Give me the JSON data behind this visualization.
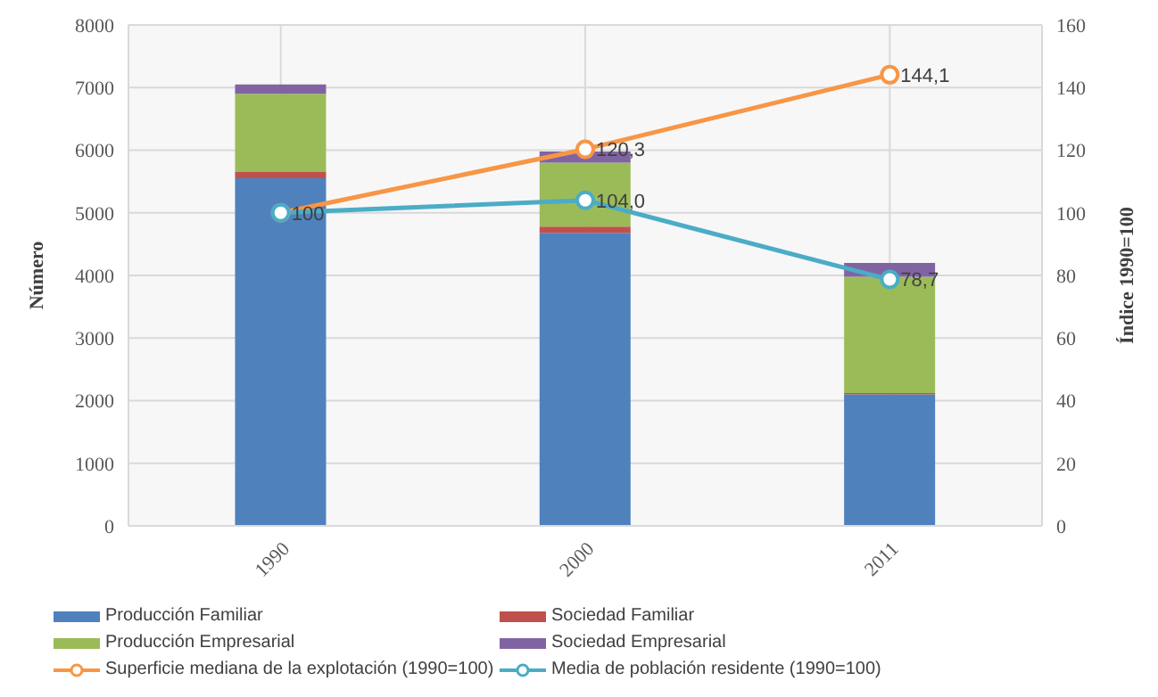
{
  "chart_data": {
    "type": "bar",
    "stacked": true,
    "categories": [
      "1990",
      "2000",
      "2011"
    ],
    "ylabel": "Número",
    "y2label": "Índice  1990=100",
    "ylim": [
      0,
      8000
    ],
    "yticks": [
      0,
      1000,
      2000,
      3000,
      4000,
      5000,
      6000,
      7000,
      8000
    ],
    "y2lim": [
      0,
      160
    ],
    "y2ticks": [
      0,
      20,
      40,
      60,
      80,
      100,
      120,
      140,
      160
    ],
    "grid": true,
    "legend": "bottom",
    "marker": "circle",
    "series": [
      {
        "name": "Producción Familiar",
        "color": "#4f81bd",
        "values": [
          5550,
          4680,
          2100
        ]
      },
      {
        "name": "Sociedad Familiar",
        "color": "#c0504d",
        "values": [
          100,
          100,
          20
        ]
      },
      {
        "name": "Producción Empresarial",
        "color": "#9bbb59",
        "values": [
          1250,
          1020,
          1860
        ]
      },
      {
        "name": "Sociedad Empresarial",
        "color": "#8064a2",
        "values": [
          150,
          180,
          220
        ]
      },
      {
        "name": "Superficie mediana de la explotación (1990=100)",
        "type": "line",
        "axis": "y2",
        "color": "#f79646",
        "values": [
          100,
          120.3,
          144.1
        ],
        "value_labels": [
          "100",
          "120,3",
          "144,1"
        ]
      },
      {
        "name": "Media de población residente (1990=100)",
        "type": "line",
        "axis": "y2",
        "color": "#4bacc6",
        "values": [
          100,
          104.0,
          78.7
        ],
        "value_labels": [
          null,
          "104,0",
          "78,7"
        ]
      }
    ]
  }
}
